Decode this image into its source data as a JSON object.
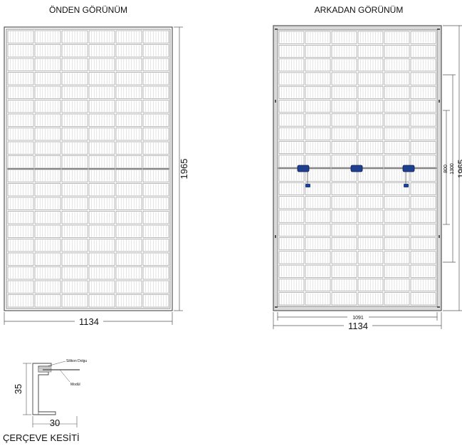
{
  "front_view": {
    "title": "ÖNDEN GÖRÜNÜM",
    "width_label": "1134",
    "height_label": "1965"
  },
  "back_view": {
    "title": "ARKADAN GÖRÜNÜM",
    "inner_width_label": "1091",
    "width_label": "1134",
    "dim_800": "800",
    "dim_1300": "1300",
    "height_label": "1965"
  },
  "cross_section": {
    "title": "ÇERÇEVE KESİTİ",
    "sealant_label": "Silikon Dolgu",
    "module_label": "Modül",
    "height_label": "35",
    "width_label": "30"
  },
  "colors": {
    "line": "#555555",
    "cell_line": "#8a8a8a",
    "frame_back": "#d9d9d9",
    "junction_box": "#1f3f8f"
  }
}
